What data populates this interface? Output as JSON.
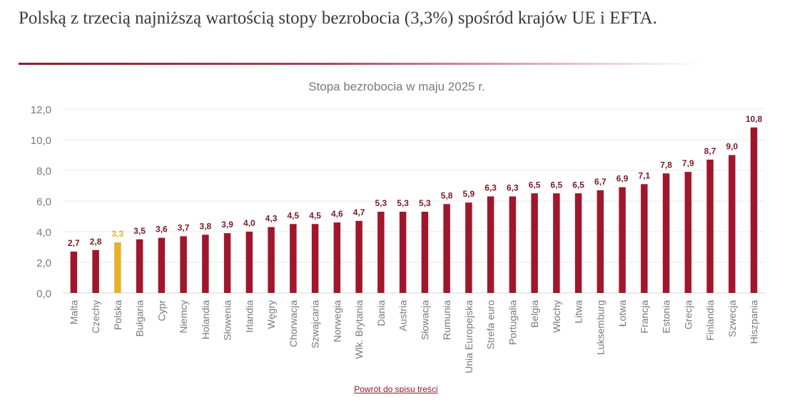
{
  "headline": "Polską z trzecią najniższą wartością stopy bezrobocia (3,3%) spośród krajów UE i EFTA.",
  "back_link": "Powrót do spisu treści",
  "colors": {
    "bar": "#a0172d",
    "highlight": "#e6b22c",
    "text_bar_label": "#7a1a26",
    "axis_text": "#7a7a7a",
    "gridline": "#e9e9e9"
  },
  "chart_data": {
    "type": "bar",
    "title": "Stopa bezrobocia w maju 2025 r.",
    "xlabel": "",
    "ylabel": "",
    "ylim": [
      0,
      12
    ],
    "yticks": [
      "0,0",
      "2,0",
      "4,0",
      "6,0",
      "8,0",
      "10,0",
      "12,0"
    ],
    "grid": true,
    "legend": "none",
    "highlight_category": "Polska",
    "categories": [
      "Malta",
      "Czechy",
      "Polska",
      "Bułgaria",
      "Cypr",
      "Niemcy",
      "Holandia",
      "Słowenia",
      "Irlandia",
      "Węgry",
      "Chorwacja",
      "Szwajcaria",
      "Norwegia",
      "Wlk. Brytania",
      "Dania",
      "Austria",
      "Słowacja",
      "Rumunia",
      "Unia Europejska",
      "Strefa euro",
      "Portugalia",
      "Belgia",
      "Włochy",
      "Litwa",
      "Luksemburg",
      "Łotwa",
      "Francja",
      "Estonia",
      "Grecja",
      "Finlandia",
      "Szwecja",
      "Hiszpania"
    ],
    "values": [
      2.7,
      2.8,
      3.3,
      3.5,
      3.6,
      3.7,
      3.8,
      3.9,
      4.0,
      4.3,
      4.5,
      4.5,
      4.6,
      4.7,
      5.3,
      5.3,
      5.3,
      5.8,
      5.9,
      6.3,
      6.3,
      6.5,
      6.5,
      6.5,
      6.7,
      6.9,
      7.1,
      7.8,
      7.9,
      8.7,
      9.0,
      10.8
    ],
    "value_labels": [
      "2,7",
      "2,8",
      "3,3",
      "3,5",
      "3,6",
      "3,7",
      "3,8",
      "3,9",
      "4,0",
      "4,3",
      "4,5",
      "4,5",
      "4,6",
      "4,7",
      "5,3",
      "5,3",
      "5,3",
      "5,8",
      "5,9",
      "6,3",
      "6,3",
      "6,5",
      "6,5",
      "6,5",
      "6,7",
      "6,9",
      "7,1",
      "7,8",
      "7,9",
      "8,7",
      "9,0",
      "10,8"
    ]
  }
}
